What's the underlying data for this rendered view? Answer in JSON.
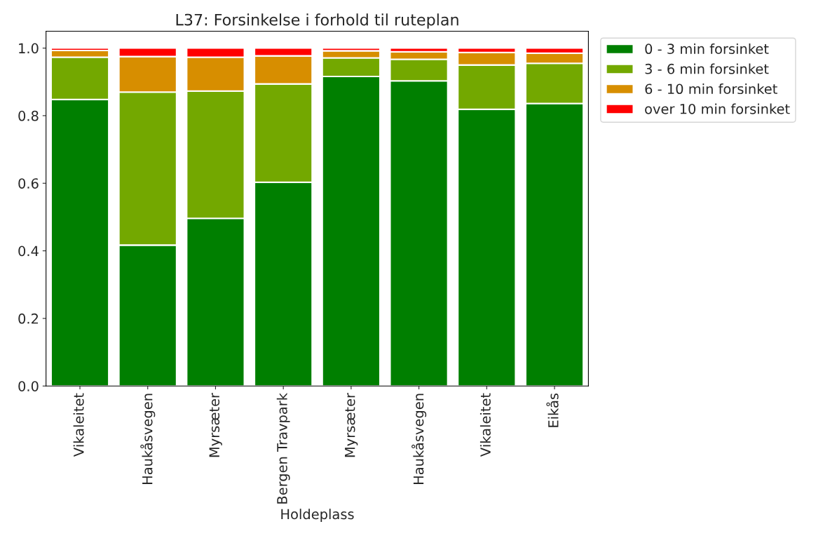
{
  "chart_data": {
    "type": "bar",
    "title": "L37: Forsinkelse i forhold til ruteplan",
    "xlabel": "Holdeplass",
    "categories": [
      "Vikaleitet",
      "Haukåsvegen",
      "Myrsæter",
      "Bergen Travpark",
      "Myrsæter",
      "Haukåsvegen",
      "Vikaleitet",
      "Eikås"
    ],
    "stacked": true,
    "legend": "top right",
    "grid": false,
    "ylim": [
      0,
      1.05
    ],
    "yticks": [
      {
        "value": 0,
        "label": "0.0"
      },
      {
        "value": 0.2,
        "label": "0.2"
      },
      {
        "value": 0.4,
        "label": "0.4"
      },
      {
        "value": 0.6,
        "label": "0.6"
      },
      {
        "value": 0.8,
        "label": "0.8"
      },
      {
        "value": 1,
        "label": "1.0"
      }
    ],
    "series": [
      {
        "name": "0 - 3 min forsinket",
        "color": "#007f00",
        "values": [
          0.848,
          0.417,
          0.496,
          0.603,
          0.916,
          0.903,
          0.819,
          0.836
        ]
      },
      {
        "name": "3 - 6 min forsinket",
        "color": "#73a800",
        "values": [
          0.125,
          0.453,
          0.377,
          0.291,
          0.055,
          0.064,
          0.131,
          0.119
        ]
      },
      {
        "name": "6 - 10 min forsinket",
        "color": "#d78e00",
        "values": [
          0.02,
          0.105,
          0.1,
          0.083,
          0.021,
          0.022,
          0.037,
          0.03
        ]
      },
      {
        "name": "over 10 min forsinket",
        "color": "#ff0000",
        "values": [
          0.007,
          0.025,
          0.027,
          0.023,
          0.008,
          0.011,
          0.013,
          0.015
        ]
      }
    ]
  }
}
